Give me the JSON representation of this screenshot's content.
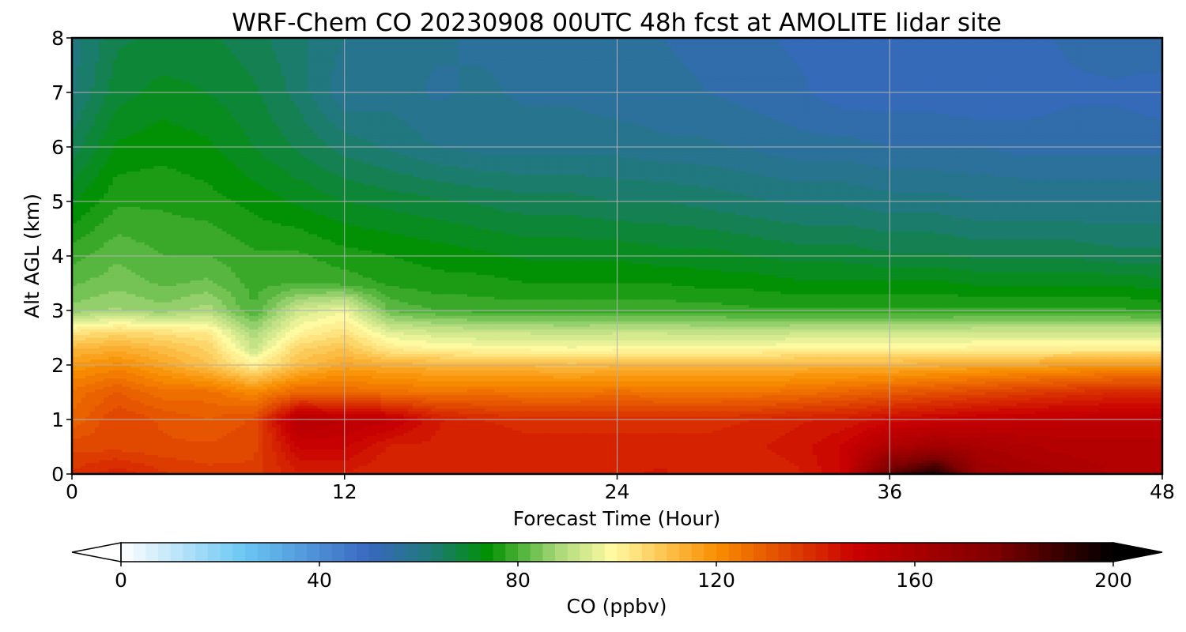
{
  "chart_data": {
    "type": "heatmap",
    "subtype": "filled-contour time-height curtain",
    "title": "WRF-Chem CO  20230908 00UTC 48h fcst at AMOLITE lidar site",
    "xlabel": "Forecast Time (Hour)",
    "ylabel": "Alt AGL (km)",
    "xlim": [
      0,
      48
    ],
    "ylim": [
      0,
      8
    ],
    "xticks": [
      "0",
      "12",
      "24",
      "36",
      "48"
    ],
    "yticks": [
      "0",
      "1",
      "2",
      "3",
      "4",
      "5",
      "6",
      "7",
      "8"
    ],
    "grid": true,
    "x": [
      0,
      2,
      4,
      6,
      8,
      10,
      12,
      14,
      16,
      18,
      20,
      22,
      24,
      26,
      28,
      30,
      32,
      34,
      36,
      38,
      40,
      42,
      44,
      46,
      48
    ],
    "y": [
      0,
      0.5,
      1,
      1.5,
      2,
      2.3,
      2.6,
      3,
      3.5,
      4,
      5,
      6,
      7,
      8
    ],
    "z_by_altitude": [
      [
        138,
        142,
        138,
        136,
        136,
        142,
        142,
        140,
        140,
        140,
        140,
        140,
        142,
        143,
        140,
        140,
        142,
        148,
        182,
        195,
        165,
        162,
        160,
        157,
        157
      ],
      [
        134,
        134,
        133,
        133,
        134,
        148,
        148,
        142,
        142,
        142,
        141,
        141,
        141,
        141,
        141,
        142,
        144,
        148,
        158,
        163,
        160,
        158,
        156,
        156,
        156
      ],
      [
        128,
        135,
        132,
        130,
        133,
        156,
        153,
        151,
        143,
        140,
        139,
        139,
        139,
        139,
        139,
        140,
        142,
        143,
        146,
        148,
        150,
        151,
        152,
        152,
        152
      ],
      [
        126,
        130,
        126,
        126,
        121,
        128,
        127,
        126,
        125,
        126,
        125,
        125,
        126,
        125,
        125,
        125,
        126,
        128,
        130,
        132,
        134,
        136,
        138,
        140,
        140
      ],
      [
        118,
        121,
        116,
        110,
        101,
        111,
        116,
        114,
        113,
        112,
        112,
        111,
        112,
        112,
        112,
        112,
        113,
        113,
        113,
        114,
        115,
        116,
        117,
        118,
        118
      ],
      [
        112,
        114,
        111,
        107,
        92,
        107,
        110,
        102,
        100,
        99,
        99,
        98,
        99,
        99,
        99,
        99,
        100,
        100,
        100,
        100,
        101,
        101,
        101,
        101,
        101
      ],
      [
        103,
        106,
        104,
        102,
        88,
        100,
        104,
        95,
        93,
        92,
        92,
        91,
        92,
        92,
        91,
        91,
        92,
        92,
        92,
        92,
        93,
        93,
        93,
        93,
        93
      ],
      [
        86,
        88,
        86,
        89,
        80,
        93,
        97,
        82,
        80,
        79,
        79,
        79,
        79,
        79,
        79,
        78,
        78,
        78,
        78,
        78,
        78,
        78,
        78,
        78,
        77
      ],
      [
        82,
        84,
        82,
        83,
        79,
        80,
        79,
        77,
        76,
        76,
        75,
        75,
        75,
        75,
        74,
        74,
        73,
        73,
        73,
        73,
        72,
        72,
        72,
        72,
        71
      ],
      [
        79,
        82,
        80,
        80,
        78,
        78,
        76,
        75,
        74,
        73,
        72,
        72,
        72,
        71,
        71,
        70,
        69,
        69,
        68,
        68,
        67,
        67,
        67,
        66,
        66
      ],
      [
        72,
        77,
        77,
        76,
        74,
        72,
        70,
        69,
        68,
        67,
        66,
        66,
        65,
        65,
        64,
        63,
        62,
        62,
        61,
        61,
        60,
        60,
        60,
        60,
        60
      ],
      [
        66,
        73,
        74,
        73,
        70,
        67,
        64,
        62,
        60,
        59,
        59,
        59,
        59,
        58,
        58,
        57,
        56,
        56,
        55,
        55,
        55,
        54,
        54,
        54,
        54
      ],
      [
        62,
        69,
        71,
        70,
        68,
        64,
        58,
        59,
        57,
        58,
        57,
        57,
        56,
        56,
        55,
        54,
        53,
        51,
        51,
        51,
        50,
        51,
        52,
        52,
        51
      ],
      [
        61,
        67,
        68,
        68,
        66,
        63,
        60,
        59,
        58,
        57,
        57,
        56,
        56,
        55,
        54,
        53,
        52,
        52,
        51,
        51,
        52,
        52,
        53,
        54,
        55
      ]
    ],
    "colorbar": {
      "label": "CO  (ppbv)",
      "vmin": 0,
      "vmax": 200,
      "ticks": [
        "0",
        "40",
        "80",
        "120",
        "160",
        "200"
      ],
      "extend": "both",
      "extend_min_color": "#ffffff",
      "extend_max_color": "#000000",
      "orientation": "horizontal",
      "position": "below plot",
      "stops": [
        {
          "v": 0,
          "c": "#ffffff"
        },
        {
          "v": 25,
          "c": "#6ac6f3"
        },
        {
          "v": 50,
          "c": "#3868c0"
        },
        {
          "v": 63,
          "c": "#1d7a74"
        },
        {
          "v": 74,
          "c": "#019102"
        },
        {
          "v": 88,
          "c": "#a8d879"
        },
        {
          "v": 99,
          "c": "#fffba3"
        },
        {
          "v": 120,
          "c": "#f98f00"
        },
        {
          "v": 148,
          "c": "#c90000"
        },
        {
          "v": 176,
          "c": "#7f0000"
        },
        {
          "v": 200,
          "c": "#000000"
        }
      ]
    }
  }
}
